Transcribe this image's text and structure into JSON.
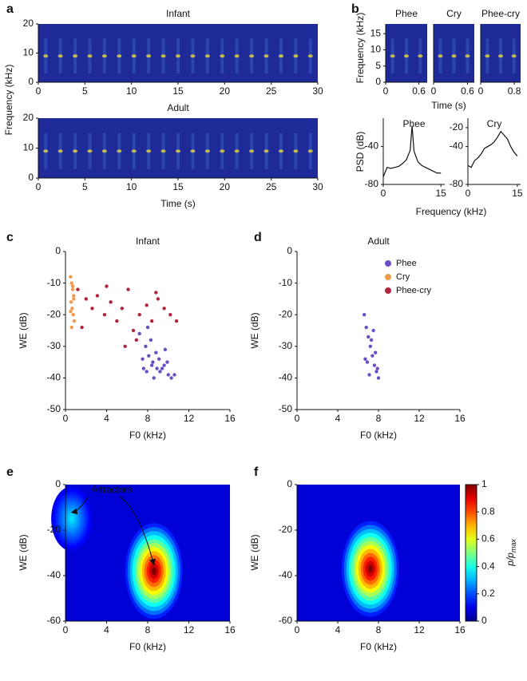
{
  "chart_data": [
    {
      "type": "spectrogram",
      "panel": "a",
      "title": "Infant",
      "ylabel": "Frequency (kHz)",
      "xlim": [
        0,
        30
      ],
      "xticks": [
        0,
        5,
        10,
        15,
        20,
        25,
        30
      ],
      "ylim": [
        0,
        20
      ],
      "yticks": [
        0,
        10,
        20
      ]
    },
    {
      "type": "spectrogram",
      "title": "Adult",
      "xlabel": "Time (s)",
      "xlim": [
        0,
        30
      ],
      "xticks": [
        0,
        5,
        10,
        15,
        20,
        25,
        30
      ],
      "ylim": [
        0,
        20
      ],
      "yticks": [
        0,
        10,
        20
      ]
    },
    {
      "type": "spectrogram",
      "panel": "b",
      "title": "Phee",
      "ylabel": "Frequency (kHz)",
      "xlim": [
        0,
        0.75
      ],
      "xticks": [
        0,
        0.6
      ],
      "ylim": [
        0,
        18
      ],
      "yticks": [
        0,
        5,
        10,
        15
      ]
    },
    {
      "type": "spectrogram",
      "title": "Cry",
      "xlabel": "Time (s)",
      "xlim": [
        0,
        0.72
      ],
      "xticks": [
        0,
        0.6
      ],
      "ylim": [
        0,
        18
      ],
      "yticks": []
    },
    {
      "type": "spectrogram",
      "title": "Phee-cry",
      "xlim": [
        0,
        0.95
      ],
      "xticks": [
        0,
        0.8
      ],
      "ylim": [
        0,
        18
      ],
      "yticks": []
    },
    {
      "type": "line",
      "title": "Phee",
      "ylabel": "PSD (dB)",
      "xlabel": "Frequency (kHz)",
      "color": "#111111",
      "xlim": [
        0,
        16
      ],
      "xticks": [
        0,
        15
      ],
      "ylim": [
        -80,
        -10
      ],
      "yticks": [
        -80,
        -40
      ],
      "x": [
        0,
        1,
        2,
        3,
        4,
        5,
        6,
        7,
        7.5,
        8,
        9,
        10,
        11,
        12,
        13,
        14,
        15
      ],
      "values": [
        -72,
        -62,
        -63,
        -62,
        -61,
        -58,
        -54,
        -44,
        -18,
        -45,
        -56,
        -60,
        -62,
        -64,
        -66,
        -68,
        -68
      ]
    },
    {
      "type": "line",
      "title": "Cry",
      "color": "#111111",
      "xlim": [
        0,
        16
      ],
      "xticks": [
        0,
        15
      ],
      "ylim": [
        -80,
        -10
      ],
      "yticks": [
        -80,
        -40,
        -20
      ],
      "x": [
        0,
        1,
        2,
        3,
        4,
        5,
        6,
        7,
        8,
        9,
        10,
        11,
        12,
        13,
        14,
        15
      ],
      "values": [
        -60,
        -62,
        -55,
        -52,
        -48,
        -42,
        -40,
        -38,
        -35,
        -30,
        -24,
        -28,
        -32,
        -40,
        -46,
        -50
      ]
    },
    {
      "type": "scatter",
      "panel": "c",
      "title": "Infant",
      "xlabel": "F0 (kHz)",
      "ylabel": "WE (dB)",
      "legend": true,
      "xlim": [
        0,
        16
      ],
      "xticks": [
        0,
        4,
        8,
        12,
        16
      ],
      "ylim": [
        -50,
        0
      ],
      "yticks": [
        0,
        -10,
        -20,
        -30,
        -40,
        -50
      ],
      "series": [
        {
          "name": "Phee",
          "color": "#6a4fc4",
          "x": [
            7.2,
            7.8,
            8.1,
            8.5,
            8.9,
            9.2,
            9.6,
            10.0,
            10.3,
            7.5,
            8.3,
            8.8,
            9.4,
            9.9,
            10.6,
            7.9,
            8.6,
            9.1,
            9.7,
            8.0,
            7.6,
            8.4
          ],
          "values": [
            -26,
            -30,
            -33,
            -35,
            -37,
            -38,
            -36,
            -39,
            -40,
            -34,
            -28,
            -32,
            -37,
            -35,
            -39,
            -38,
            -40,
            -34,
            -31,
            -24,
            -37,
            -36
          ]
        },
        {
          "name": "Cry",
          "color": "#f39a4a",
          "x": [
            0.5,
            0.6,
            0.7,
            0.8,
            0.55,
            0.65,
            0.75,
            0.85,
            0.6,
            0.7,
            0.5,
            0.8
          ],
          "values": [
            -8,
            -10,
            -12,
            -14,
            -16,
            -18,
            -20,
            -22,
            -24,
            -11,
            -19,
            -15
          ]
        },
        {
          "name": "Phee-cry",
          "color": "#b0243e",
          "x": [
            1.2,
            2.0,
            2.6,
            3.1,
            3.8,
            4.4,
            5.0,
            5.5,
            6.1,
            6.6,
            7.2,
            7.9,
            8.4,
            9.0,
            9.6,
            10.2,
            10.8,
            1.6,
            4.0,
            5.8,
            6.9,
            8.8
          ],
          "values": [
            -12,
            -15,
            -18,
            -14,
            -20,
            -16,
            -22,
            -18,
            -12,
            -25,
            -20,
            -17,
            -22,
            -15,
            -18,
            -20,
            -22,
            -24,
            -11,
            -30,
            -28,
            -13
          ]
        }
      ]
    },
    {
      "type": "scatter",
      "panel": "d",
      "title": "Adult",
      "xlabel": "F0 (kHz)",
      "ylabel": "WE (dB)",
      "xlim": [
        0,
        16
      ],
      "xticks": [
        0,
        4,
        8,
        12,
        16
      ],
      "ylim": [
        -50,
        0
      ],
      "yticks": [
        0,
        -10,
        -20,
        -30,
        -40,
        -50
      ],
      "series": [
        {
          "name": "Phee",
          "color": "#6a4fc4",
          "x": [
            6.6,
            6.8,
            7.0,
            7.2,
            7.4,
            7.6,
            7.8,
            8.0,
            6.9,
            7.3,
            7.7,
            7.1,
            7.5,
            6.7,
            7.9
          ],
          "values": [
            -20,
            -24,
            -27,
            -30,
            -33,
            -36,
            -38,
            -40,
            -35,
            -28,
            -32,
            -39,
            -25,
            -34,
            -37
          ]
        }
      ]
    },
    {
      "type": "density",
      "panel": "e",
      "annotation": "Attractors",
      "xlabel": "F0 (kHz)",
      "ylabel": "WE (dB)",
      "xlim": [
        0,
        16
      ],
      "xticks": [
        0,
        4,
        8,
        12,
        16
      ],
      "ylim": [
        -60,
        0
      ],
      "yticks": [
        0,
        -20,
        -40,
        -60
      ],
      "peaks": [
        {
          "x": 0.6,
          "y": -15,
          "value": 0.35
        },
        {
          "x": 8.6,
          "y": -38,
          "value": 1
        }
      ]
    },
    {
      "type": "density",
      "panel": "f",
      "xlabel": "F0 (kHz)",
      "ylabel": "WE (dB)",
      "xlim": [
        0,
        16
      ],
      "xticks": [
        0,
        4,
        8,
        12,
        16
      ],
      "ylim": [
        -60,
        0
      ],
      "yticks": [
        0,
        -20,
        -40,
        -60
      ],
      "peaks": [
        {
          "x": 7.2,
          "y": -37,
          "value": 1
        }
      ],
      "clim": [
        0,
        1
      ],
      "colorbar_ticks": [
        0,
        0.2,
        0.4,
        0.6,
        0.8,
        1
      ],
      "colorbar_label": [
        "p/p",
        "max"
      ]
    }
  ]
}
